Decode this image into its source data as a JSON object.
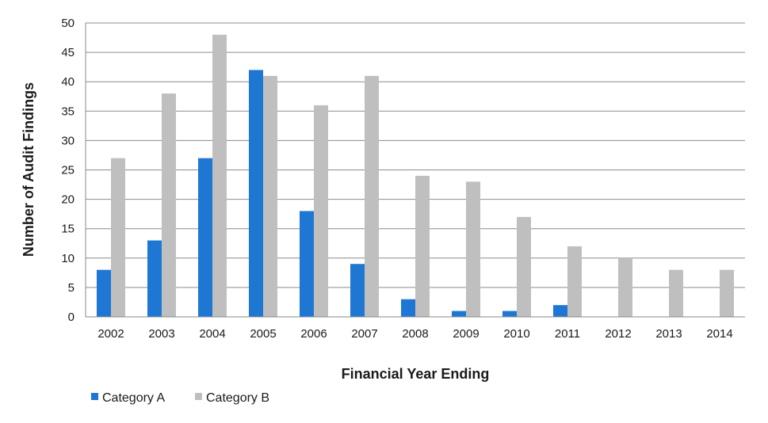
{
  "chart_data": {
    "type": "bar",
    "title": "",
    "xlabel": "Financial Year Ending",
    "ylabel": "Number of Audit Findings",
    "categories": [
      "2002",
      "2003",
      "2004",
      "2005",
      "2006",
      "2007",
      "2008",
      "2009",
      "2010",
      "2011",
      "2012",
      "2013",
      "2014"
    ],
    "series": [
      {
        "name": "Category A",
        "color": "#1f77d4",
        "values": [
          8,
          13,
          27,
          42,
          18,
          9,
          3,
          1,
          1,
          2,
          0,
          0,
          0
        ]
      },
      {
        "name": "Category B",
        "color": "#bfbfbf",
        "values": [
          27,
          38,
          48,
          41,
          36,
          41,
          24,
          23,
          17,
          12,
          10,
          8,
          8
        ]
      }
    ],
    "ylim": [
      0,
      50
    ],
    "yticks": [
      "0",
      "5",
      "10",
      "15",
      "20",
      "25",
      "30",
      "35",
      "40",
      "45",
      "50"
    ],
    "grid": true,
    "legend_position": "bottom-left"
  }
}
